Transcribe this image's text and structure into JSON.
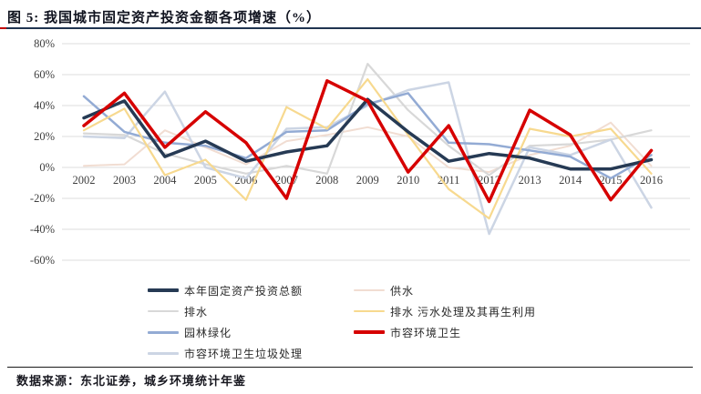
{
  "title": "图 5: 我国城市固定资产投资金额各项增速（%）",
  "source_note": "数据来源：东北证券，城乡环境统计年鉴",
  "colors": {
    "title_underline": "#1f3450",
    "title_underline_cap": "#c00000",
    "gridline": "#dcdcdc",
    "tick_label": "#3f3f3f"
  },
  "chart_data": {
    "type": "line",
    "title": "我国城市固定资产投资金额各项增速（%）",
    "x": [
      2002,
      2003,
      2004,
      2005,
      2006,
      2007,
      2008,
      2009,
      2010,
      2011,
      2012,
      2013,
      2014,
      2015,
      2016
    ],
    "xticklabels": [
      "2002",
      "2003",
      "2004",
      "2005",
      "2006",
      "2007",
      "2008",
      "2009",
      "2010",
      "2011",
      "2012",
      "2013",
      "2014",
      "2015",
      "2016"
    ],
    "ylim": [
      -60,
      80
    ],
    "yticks": [
      80,
      60,
      40,
      20,
      0,
      -20,
      -40,
      -60
    ],
    "yticklabels": [
      "80%",
      "60%",
      "40%",
      "20%",
      "0%",
      "-20%",
      "-40%",
      "-60%"
    ],
    "grid": true,
    "legend_position": "bottom",
    "series": [
      {
        "key": "total-investment",
        "name": "本年固定资产投资总额",
        "color": "#263a54",
        "width": 3.5,
        "values": [
          32,
          43,
          7,
          17,
          4,
          10,
          14,
          44,
          23,
          4,
          9,
          6,
          -1,
          -1,
          5
        ]
      },
      {
        "key": "water-supply",
        "name": "供水",
        "color": "#f1ddd2",
        "width": 2,
        "values": [
          1,
          2,
          24,
          13,
          2,
          17,
          21,
          26,
          20,
          0,
          -3,
          8,
          14,
          29,
          1
        ]
      },
      {
        "key": "drainage",
        "name": "排水",
        "color": "#d8d8d8",
        "width": 2.2,
        "values": [
          22,
          21,
          9,
          2,
          -4,
          1,
          -4,
          67,
          37,
          14,
          -5,
          14,
          15,
          18,
          24
        ]
      },
      {
        "key": "sewage-treatment",
        "name": "排水 污水处理及其再生利用",
        "color": "#f7d98f",
        "width": 2.2,
        "values": [
          24,
          38,
          -5,
          5,
          -21,
          39,
          25,
          57,
          21,
          -14,
          -33,
          25,
          20,
          25,
          -4
        ]
      },
      {
        "key": "landscaping",
        "name": "园林绿化",
        "color": "#93abd4",
        "width": 2.5,
        "values": [
          46,
          23,
          16,
          14,
          6,
          23,
          24,
          41,
          48,
          16,
          15,
          11,
          7,
          -7,
          8
        ]
      },
      {
        "key": "sanitation",
        "name": "市容环境卫生",
        "color": "#d60000",
        "width": 3.5,
        "values": [
          27,
          48,
          13,
          36,
          16,
          -20,
          56,
          43,
          -3,
          27,
          -22,
          37,
          21,
          -21,
          11
        ]
      },
      {
        "key": "garbage-disposal",
        "name": "市容环境卫生垃圾处理",
        "color": "#ccd5e4",
        "width": 2.5,
        "values": [
          20,
          19,
          49,
          0,
          -7,
          25,
          26,
          40,
          50,
          55,
          -43,
          13,
          8,
          18,
          -26
        ]
      }
    ],
    "legend_columns": [
      [
        0,
        2,
        4,
        6
      ],
      [
        1,
        3,
        5
      ]
    ],
    "draw_order": [
      1,
      2,
      6,
      4,
      3,
      0,
      5
    ]
  }
}
